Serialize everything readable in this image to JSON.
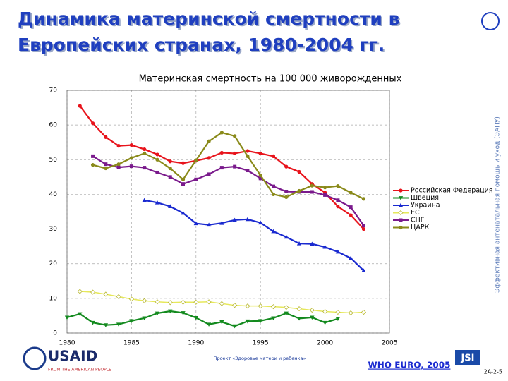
{
  "header": {
    "title_lines": [
      "Динамика материнской смертности в",
      "Европейских странах, 1980-2004 гг."
    ]
  },
  "side_text": "Эффективная антенатальная помощь и уход (ЭАПУ)",
  "footer": {
    "project": "Проект «Здоровье матери и ребенка»",
    "source": "WHO EURO, 2005",
    "slide_number": "2A-2-5",
    "usaid": "USAID",
    "usaid_tagline": "FROM THE AMERICAN PEOPLE",
    "jsi": "JSI"
  },
  "chart_data": {
    "type": "line",
    "title": "Материнская смертность на 100 000 живорожденных",
    "x": [
      1980,
      1981,
      1982,
      1983,
      1984,
      1985,
      1986,
      1987,
      1988,
      1989,
      1990,
      1991,
      1992,
      1993,
      1994,
      1995,
      1996,
      1997,
      1998,
      1999,
      2000,
      2001,
      2002,
      2003
    ],
    "xlim": [
      1980,
      2005
    ],
    "xticks": [
      1980,
      1985,
      1990,
      1995,
      2000,
      2005
    ],
    "ylim": [
      0,
      70
    ],
    "yticks": [
      0,
      10,
      20,
      30,
      40,
      50,
      60,
      70
    ],
    "grid": true,
    "legend": "right",
    "series": [
      {
        "name": "Российская Федерация",
        "color": "#e8141c",
        "marker": "circle",
        "values": [
          null,
          65.5,
          60.5,
          56.5,
          54,
          54.2,
          53,
          51.5,
          49.5,
          49,
          49.7,
          50.5,
          52,
          51.8,
          52.5,
          51.8,
          51,
          48,
          46.5,
          43,
          40.5,
          36.5,
          34,
          30
        ]
      },
      {
        "name": "Швеция",
        "color": "#138a1e",
        "marker": "triangle-down",
        "values": [
          4.5,
          5.5,
          3,
          2.3,
          2.5,
          3.5,
          4.3,
          5.7,
          6.3,
          5.8,
          4.4,
          2.5,
          3.2,
          2,
          3.4,
          3.5,
          4.3,
          5.7,
          4.2,
          4.5,
          3,
          4.1,
          null,
          null
        ]
      },
      {
        "name": "Украина",
        "color": "#1a2ad0",
        "marker": "triangle-up",
        "values": [
          null,
          null,
          null,
          null,
          null,
          null,
          38.3,
          37.6,
          36.5,
          34.6,
          31.6,
          31.2,
          31.7,
          32.6,
          32.8,
          31.8,
          29.3,
          27.7,
          25.8,
          25.7,
          24.8,
          23.4,
          21.6,
          18
        ]
      },
      {
        "name": "ЕС",
        "color": "#e6e85a",
        "marker": "diamond",
        "values": [
          null,
          12,
          11.8,
          11.2,
          10.5,
          9.8,
          9.3,
          9,
          8.8,
          8.9,
          8.9,
          9,
          8.5,
          8,
          7.8,
          7.8,
          7.6,
          7.4,
          7,
          6.6,
          6.2,
          6,
          5.8,
          6
        ]
      },
      {
        "name": "СНГ",
        "color": "#7a1a8c",
        "marker": "square",
        "values": [
          null,
          null,
          51,
          48.7,
          47.8,
          48.1,
          47.7,
          46.3,
          45,
          43,
          44.3,
          45.8,
          47.7,
          48,
          46.9,
          44.6,
          42.3,
          40.8,
          40.7,
          40.7,
          39.8,
          38.3,
          36.3,
          31
        ]
      },
      {
        "name": "ЦАРК",
        "color": "#8a8a1a",
        "marker": "circle",
        "values": [
          null,
          null,
          48.5,
          47.5,
          48.7,
          50.5,
          51.8,
          50,
          47.5,
          44.3,
          49.8,
          55.3,
          57.8,
          56.8,
          51,
          45.5,
          40,
          39.2,
          41,
          42.5,
          42,
          42.4,
          40.5,
          38.7
        ]
      }
    ]
  }
}
